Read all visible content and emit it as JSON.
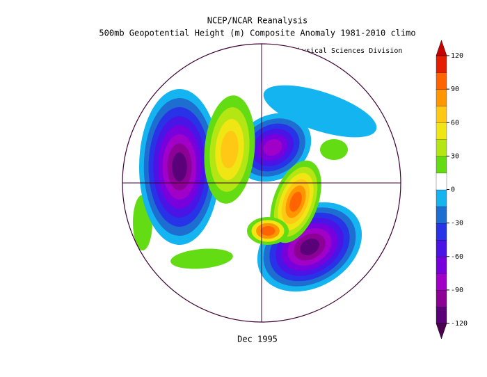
{
  "title": "NCEP/NCAR Reanalysis",
  "subtitle": "500mb Geopotential Height (m) Composite Anomaly 1981-2010 climo",
  "credit": "NOAA/ESRL Physical Sciences Division",
  "period": "Dec 1995",
  "colorbar": {
    "lim": [
      -120,
      120
    ],
    "ticks": [
      -120,
      -90,
      -60,
      -30,
      0,
      30,
      60,
      90,
      120
    ],
    "colors": [
      "#5a0078",
      "#8c0096",
      "#a000c8",
      "#7800dc",
      "#4b14e6",
      "#2832e6",
      "#1e6ed2",
      "#14b4f0",
      "#ffffff",
      "#64dc14",
      "#b4e614",
      "#f0e614",
      "#ffc814",
      "#ff9600",
      "#ff6400",
      "#e61e00"
    ],
    "low_color": "#4b0050",
    "high_color": "#c80000"
  }
}
